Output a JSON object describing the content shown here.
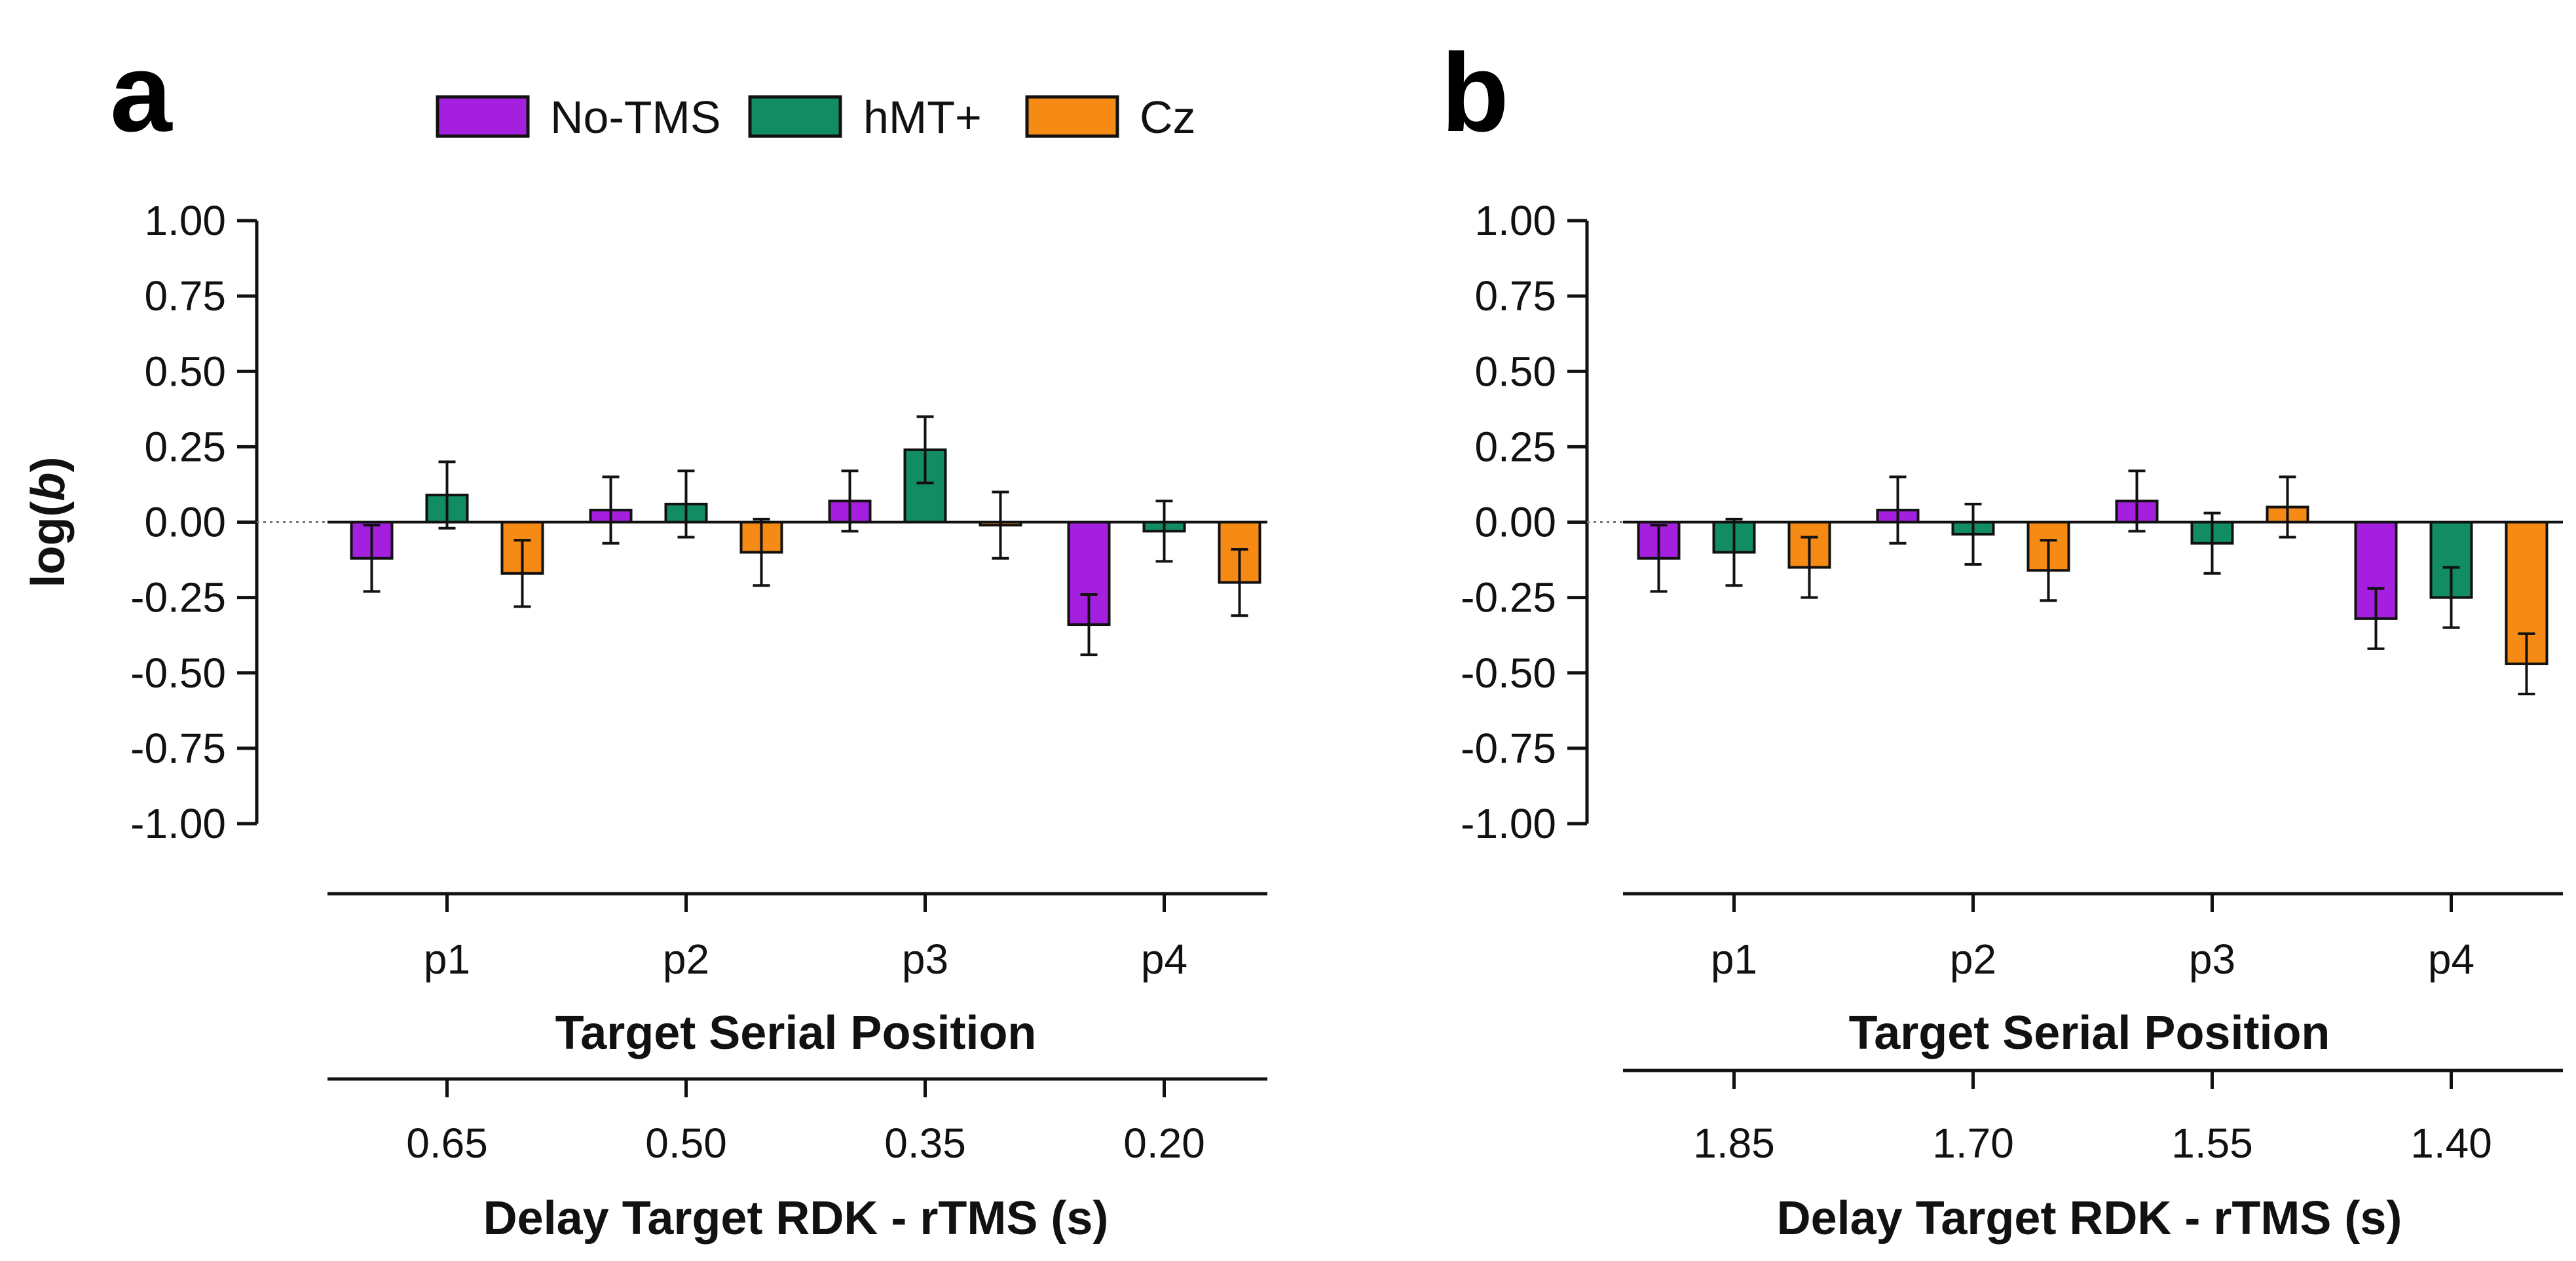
{
  "legend": [
    {
      "name": "No-TMS",
      "color": "#a41fde"
    },
    {
      "name": "hMT+",
      "color": "#128c63"
    },
    {
      "name": "Cz",
      "color": "#f58a14"
    }
  ],
  "chart_data": [
    {
      "panel": "a",
      "type": "bar",
      "ylabel_pre": "log(",
      "ylabel_var": "b",
      "ylabel_post": ")",
      "ylim": [
        -1.0,
        1.0
      ],
      "yticks": [
        "1.00",
        "0.75",
        "0.50",
        "0.25",
        "0.00",
        "-0.25",
        "-0.50",
        "-0.75",
        "-1.00"
      ],
      "categories": [
        "p1",
        "p2",
        "p3",
        "p4"
      ],
      "xlabel": "Target Serial Position",
      "categories2": [
        "0.65",
        "0.50",
        "0.35",
        "0.20"
      ],
      "xlabel2": "Delay Target RDK - rTMS  (s)",
      "series": [
        {
          "name": "No-TMS",
          "values": [
            -0.12,
            0.04,
            0.07,
            -0.34
          ],
          "errors": [
            0.11,
            0.11,
            0.1,
            0.1
          ]
        },
        {
          "name": "hMT+",
          "values": [
            0.09,
            0.06,
            0.24,
            -0.03
          ],
          "errors": [
            0.11,
            0.11,
            0.11,
            0.1
          ]
        },
        {
          "name": "Cz",
          "values": [
            -0.17,
            -0.1,
            -0.01,
            -0.2
          ],
          "errors": [
            0.11,
            0.11,
            0.11,
            0.11
          ]
        }
      ]
    },
    {
      "panel": "b",
      "type": "bar",
      "ylabel_pre": "",
      "ylabel_var": "",
      "ylabel_post": "",
      "ylim": [
        -1.0,
        1.0
      ],
      "yticks": [
        "1.00",
        "0.75",
        "0.50",
        "0.25",
        "0.00",
        "-0.25",
        "-0.50",
        "-0.75",
        "-1.00"
      ],
      "categories": [
        "p1",
        "p2",
        "p3",
        "p4"
      ],
      "xlabel": "Target Serial Position",
      "categories2": [
        "1.85",
        "1.70",
        "1.55",
        "1.40"
      ],
      "xlabel2": "Delay Target RDK - rTMS  (s)",
      "series": [
        {
          "name": "No-TMS",
          "values": [
            -0.12,
            0.04,
            0.07,
            -0.32
          ],
          "errors": [
            0.11,
            0.11,
            0.1,
            0.1
          ]
        },
        {
          "name": "hMT+",
          "values": [
            -0.1,
            -0.04,
            -0.07,
            -0.25
          ],
          "errors": [
            0.11,
            0.1,
            0.1,
            0.1
          ]
        },
        {
          "name": "Cz",
          "values": [
            -0.15,
            -0.16,
            0.05,
            -0.47
          ],
          "errors": [
            0.1,
            0.1,
            0.1,
            0.1
          ]
        }
      ]
    }
  ]
}
